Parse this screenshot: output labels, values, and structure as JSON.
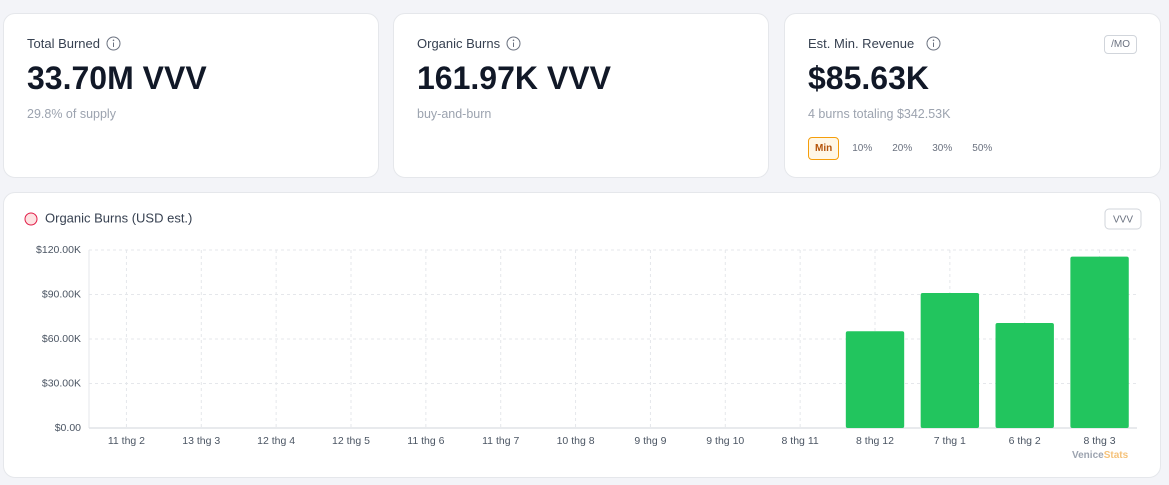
{
  "cards": [
    {
      "label": "Total Burned",
      "value": "33.70M VVV",
      "note": "29.8% of supply"
    },
    {
      "label": "Organic Burns",
      "value": "161.97K VVV",
      "note": "buy-and-burn"
    },
    {
      "label": "Est. Min. Revenue",
      "badge": "/MO",
      "value": "$85.63K",
      "note": "4 burns totaling $342.53K",
      "options": [
        "Min",
        "10%",
        "20%",
        "30%",
        "50%"
      ],
      "selected": 0
    }
  ],
  "chart_data": {
    "type": "bar",
    "title": "Organic Burns (USD est.)",
    "badge": "VVV",
    "categories": [
      "11 thg 2",
      "13 thg 3",
      "12 thg 4",
      "12 thg 5",
      "11 thg 6",
      "11 thg 7",
      "10 thg 8",
      "9 thg 9",
      "9 thg 10",
      "8 thg 11",
      "8 thg 12",
      "7 thg 1",
      "6 thg 2",
      "8 thg 3"
    ],
    "values": [
      null,
      null,
      null,
      null,
      null,
      null,
      null,
      null,
      null,
      null,
      65200,
      91000,
      70800,
      115530
    ],
    "color": "#22c55e",
    "ylim": [
      0,
      120000
    ],
    "yticks": [
      {
        "value": 0,
        "label": "$0.00"
      },
      {
        "value": 30000,
        "label": "$30.00K"
      },
      {
        "value": 60000,
        "label": "$60.00K"
      },
      {
        "value": 90000,
        "label": "$90.00K"
      },
      {
        "value": 120000,
        "label": "$120.00K"
      }
    ],
    "grid": true,
    "watermark": [
      "Venice",
      "Stats"
    ]
  }
}
